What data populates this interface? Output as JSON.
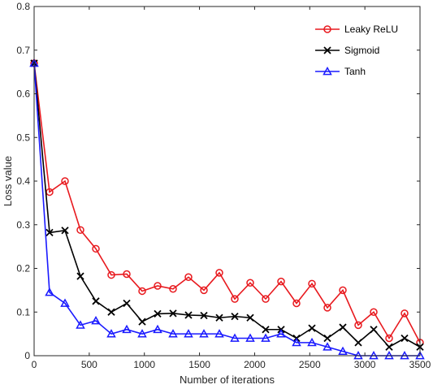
{
  "chart_data": {
    "type": "line",
    "xlabel": "Number of iterations",
    "ylabel": "Loss value",
    "xlim": [
      0,
      3500
    ],
    "ylim": [
      0,
      0.8
    ],
    "xticks": [
      0,
      500,
      1000,
      1500,
      2000,
      2500,
      3000,
      3500
    ],
    "yticks": [
      0,
      0.1,
      0.2,
      0.3,
      0.4,
      0.5,
      0.6,
      0.7,
      0.8
    ],
    "xtick_labels": [
      "0",
      "500",
      "1000",
      "1500",
      "2000",
      "2500",
      "3000",
      "3500"
    ],
    "ytick_labels": [
      "0",
      "0.1",
      "0.2",
      "0.3",
      "0.4",
      "0.5",
      "0.6",
      "0.7",
      "0.8"
    ],
    "grid": false,
    "legend_position": "top-right",
    "x": [
      0,
      140,
      280,
      420,
      560,
      700,
      840,
      980,
      1120,
      1260,
      1400,
      1540,
      1680,
      1820,
      1960,
      2100,
      2240,
      2380,
      2520,
      2660,
      2800,
      2940,
      3080,
      3220,
      3360,
      3500
    ],
    "series": [
      {
        "name": "Leaky ReLU",
        "color": "#e8191e",
        "marker": "circle",
        "values": [
          0.67,
          0.375,
          0.4,
          0.288,
          0.245,
          0.185,
          0.187,
          0.148,
          0.16,
          0.153,
          0.18,
          0.15,
          0.19,
          0.13,
          0.167,
          0.13,
          0.17,
          0.12,
          0.165,
          0.11,
          0.15,
          0.07,
          0.1,
          0.04,
          0.097,
          0.03
        ]
      },
      {
        "name": "Sigmoid",
        "color": "#000000",
        "marker": "x",
        "values": [
          0.67,
          0.282,
          0.287,
          0.182,
          0.125,
          0.1,
          0.12,
          0.078,
          0.096,
          0.097,
          0.093,
          0.092,
          0.087,
          0.09,
          0.087,
          0.06,
          0.06,
          0.04,
          0.063,
          0.04,
          0.065,
          0.03,
          0.06,
          0.02,
          0.04,
          0.02
        ]
      },
      {
        "name": "Tanh",
        "color": "#1a1aff",
        "marker": "triangle",
        "values": [
          0.67,
          0.145,
          0.12,
          0.07,
          0.08,
          0.05,
          0.06,
          0.05,
          0.06,
          0.05,
          0.05,
          0.05,
          0.05,
          0.04,
          0.04,
          0.04,
          0.05,
          0.03,
          0.03,
          0.02,
          0.01,
          0.0,
          0.0,
          0.0,
          0.0,
          0.0
        ]
      }
    ]
  }
}
